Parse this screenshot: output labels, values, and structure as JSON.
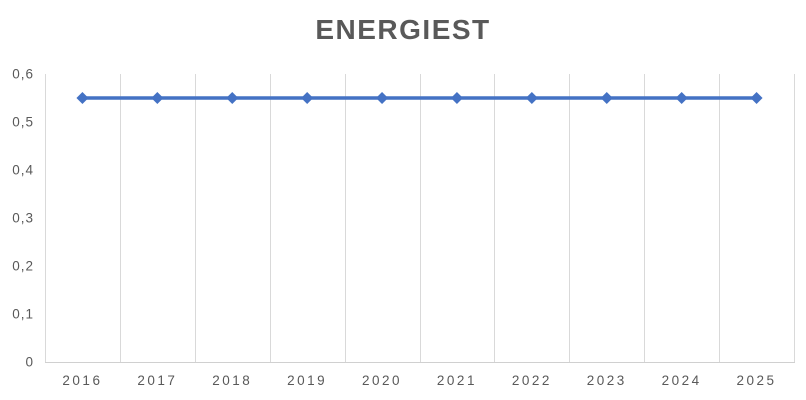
{
  "chart_data": {
    "type": "line",
    "title": "ENERGIEST",
    "categories": [
      "2016",
      "2017",
      "2018",
      "2019",
      "2020",
      "2021",
      "2022",
      "2023",
      "2024",
      "2025"
    ],
    "values": [
      0.55,
      0.55,
      0.55,
      0.55,
      0.55,
      0.55,
      0.55,
      0.55,
      0.55,
      0.55
    ],
    "y_tick_labels": [
      "0",
      "0,1",
      "0,2",
      "0,3",
      "0,4",
      "0,5",
      "0,6"
    ],
    "y_tick_values": [
      0,
      0.1,
      0.2,
      0.3,
      0.4,
      0.5,
      0.6
    ],
    "ylim": [
      0,
      0.6
    ],
    "xlabel": "",
    "ylabel": "",
    "legend": "none",
    "grid": "vertical-only",
    "marker": "diamond",
    "decimal_separator": ",",
    "colors": {
      "series_line": "#4472C4",
      "marker_fill": "#4472C4",
      "gridline": "#D9D9D9",
      "axis_line": "#D0D0D0",
      "title_text": "#595959",
      "tick_text": "#595959",
      "background": "#FFFFFF"
    }
  }
}
